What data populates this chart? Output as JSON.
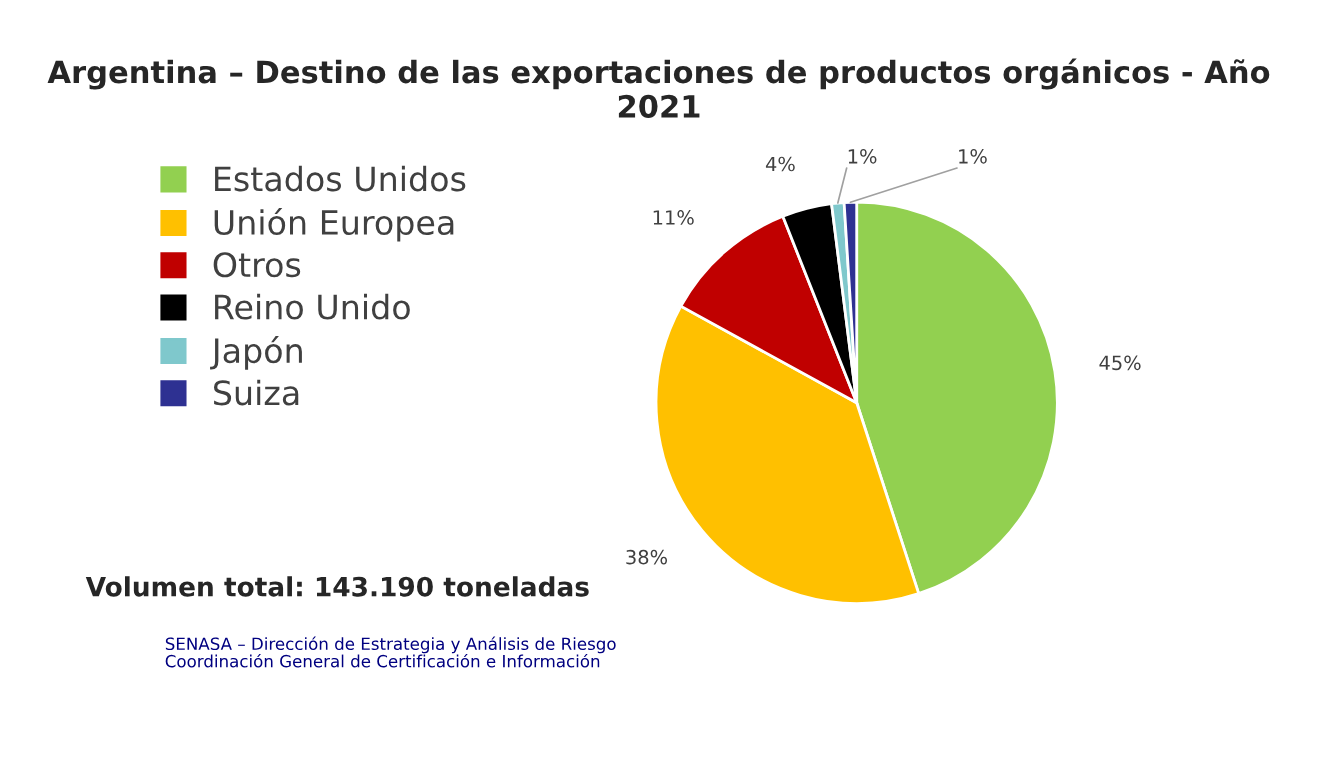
{
  "chart_data": {
    "type": "pie",
    "title": "Argentina – Destino de las exportaciones de productos orgánicos - Año 2021",
    "categories": [
      "Estados Unidos",
      "Unión Europea",
      "Otros",
      "Reino Unido",
      "Japón",
      "Suiza"
    ],
    "values": [
      45,
      38,
      11,
      4,
      1,
      1
    ],
    "colors": [
      "#92d050",
      "#ffc000",
      "#c00000",
      "#000000",
      "#7fc8cc",
      "#2e3192"
    ],
    "value_labels": [
      "45%",
      "38%",
      "11%",
      "4%",
      "1%",
      "1%"
    ],
    "legend": "left",
    "annotations": [
      "Volumen total: 143.190 toneladas",
      "SENASA – Dirección de Estrategia y Análisis de Riesgo\nCoordinación General de Certificación e Información"
    ]
  }
}
